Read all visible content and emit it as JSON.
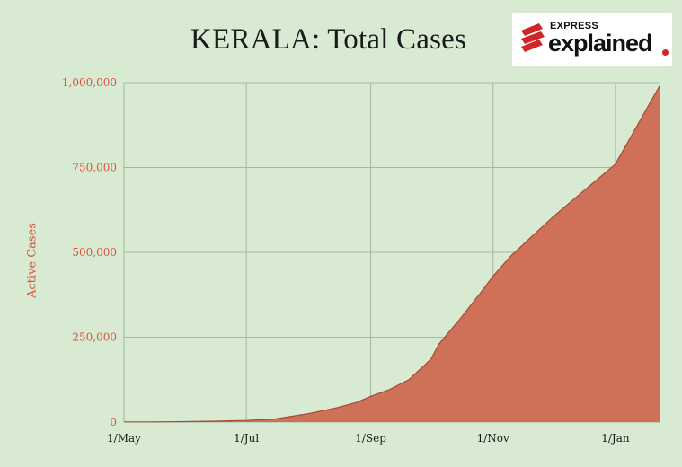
{
  "title": "KERALA: Total Cases",
  "logo": {
    "top": "EXPRESS",
    "main": "explained"
  },
  "colors": {
    "background": "#d9ead3",
    "area_fill": "#cf7159",
    "area_line": "#a64a35",
    "axis_text": "#d9533a",
    "grid": "#a3b99c",
    "brand_red": "#d1252a"
  },
  "chart_data": {
    "type": "area",
    "title": "KERALA: Total Cases",
    "xlabel": "",
    "ylabel": "Active Cases",
    "x_ticks": [
      "1/May",
      "1/Jul",
      "1/Sep",
      "1/Nov",
      "1/Jan"
    ],
    "y_ticks": [
      "0",
      "250,000",
      "500,000",
      "750,000",
      "1,000,000"
    ],
    "ylim": [
      0,
      1000000
    ],
    "xlim": [
      "2020-05-01",
      "2021-01-23"
    ],
    "grid": true,
    "x": [
      "2020-05-01",
      "2020-05-15",
      "2020-06-01",
      "2020-06-15",
      "2020-07-01",
      "2020-07-15",
      "2020-08-01",
      "2020-08-15",
      "2020-08-25",
      "2020-09-01",
      "2020-09-10",
      "2020-09-20",
      "2020-10-01",
      "2020-10-05",
      "2020-10-15",
      "2020-10-25",
      "2020-11-01",
      "2020-11-10",
      "2020-11-20",
      "2020-12-01",
      "2020-12-15",
      "2021-01-01",
      "2021-01-23"
    ],
    "values": [
      500,
      600,
      1300,
      2600,
      4700,
      9000,
      25000,
      42000,
      58000,
      76000,
      95000,
      125000,
      185000,
      230000,
      300000,
      375000,
      430000,
      490000,
      545000,
      605000,
      675000,
      760000,
      990000
    ]
  }
}
